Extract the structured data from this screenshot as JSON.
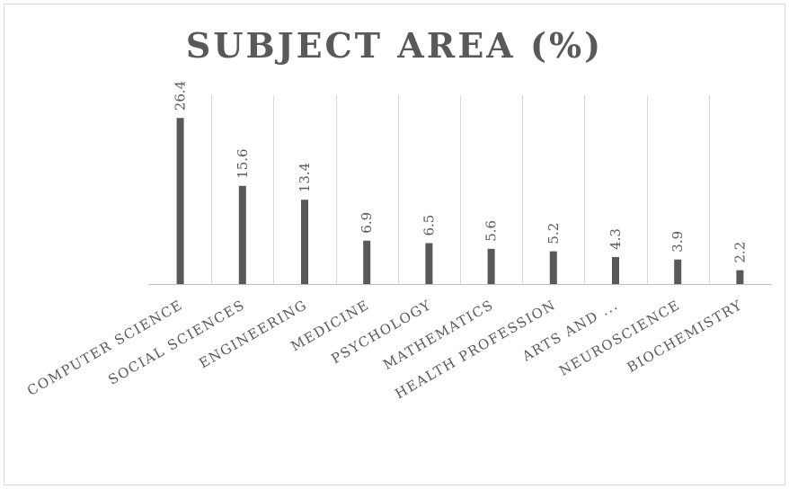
{
  "chart_data": {
    "type": "bar",
    "title": "SUBJECT AREA (%)",
    "categories": [
      "COMPUTER SCIENCE",
      "SOCIAL SCIENCES",
      "ENGINEERING",
      "MEDICINE",
      "PSYCHOLOGY",
      "MATHEMATICS",
      "HEALTH PROFESSION",
      "ARTS AND ...",
      "NEUROSCIENCE",
      "BIOCHEMISTRY"
    ],
    "values": [
      26.4,
      15.6,
      13.4,
      6.9,
      6.5,
      5.6,
      5.2,
      4.3,
      3.9,
      2.2
    ],
    "value_labels": [
      "26.4",
      "15.6",
      "13.4",
      "6.9",
      "6.5",
      "5.6",
      "5.2",
      "4.3",
      "3.9",
      "2.2"
    ],
    "ylim": [
      0,
      30
    ],
    "grid": true,
    "colors": {
      "bar": "#595959",
      "grid": "#d9d9d9",
      "text": "#595959"
    }
  }
}
